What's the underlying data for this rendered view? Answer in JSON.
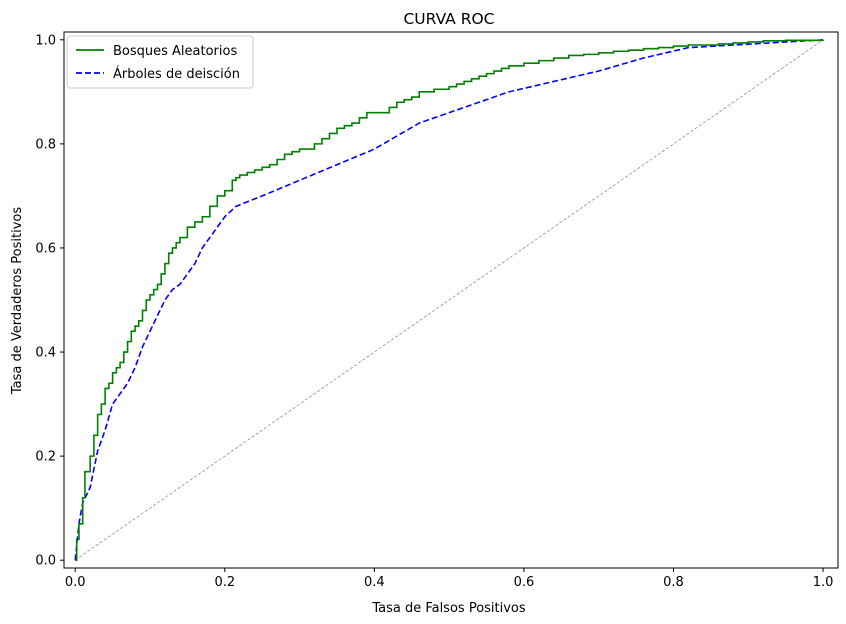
{
  "chart_data": {
    "type": "line",
    "title": "CURVA ROC",
    "xlabel": "Tasa de Falsos Positivos",
    "ylabel": "Tasa de Verdaderos Positivos",
    "xlim": [
      -0.015,
      1.02
    ],
    "ylim": [
      -0.015,
      1.015
    ],
    "xticks": [
      0.0,
      0.2,
      0.4,
      0.6,
      0.8,
      1.0
    ],
    "xtick_labels": [
      "0.0",
      "0.2",
      "0.4",
      "0.6",
      "0.8",
      "1.0"
    ],
    "yticks": [
      0.0,
      0.2,
      0.4,
      0.6,
      0.8,
      1.0
    ],
    "ytick_labels": [
      "0.0",
      "0.2",
      "0.4",
      "0.6",
      "0.8",
      "1.0"
    ],
    "grid": false,
    "legend_position": "top-left",
    "series": [
      {
        "name": "Bosques Aleatorios",
        "style": "solid",
        "color": "#008000",
        "x": [
          0.0,
          0.002,
          0.005,
          0.01,
          0.013,
          0.02,
          0.025,
          0.03,
          0.035,
          0.04,
          0.045,
          0.05,
          0.055,
          0.06,
          0.065,
          0.07,
          0.075,
          0.08,
          0.085,
          0.09,
          0.095,
          0.1,
          0.105,
          0.11,
          0.115,
          0.12,
          0.125,
          0.13,
          0.135,
          0.14,
          0.15,
          0.16,
          0.17,
          0.18,
          0.19,
          0.2,
          0.21,
          0.215,
          0.22,
          0.23,
          0.24,
          0.25,
          0.26,
          0.27,
          0.28,
          0.29,
          0.3,
          0.32,
          0.33,
          0.34,
          0.35,
          0.36,
          0.37,
          0.38,
          0.39,
          0.4,
          0.42,
          0.43,
          0.44,
          0.45,
          0.46,
          0.48,
          0.5,
          0.51,
          0.52,
          0.53,
          0.54,
          0.55,
          0.56,
          0.57,
          0.58,
          0.6,
          0.62,
          0.64,
          0.66,
          0.68,
          0.7,
          0.72,
          0.74,
          0.76,
          0.78,
          0.8,
          0.82,
          0.84,
          0.86,
          0.88,
          0.9,
          0.92,
          0.95,
          1.0
        ],
        "y": [
          0.0,
          0.04,
          0.07,
          0.12,
          0.17,
          0.2,
          0.24,
          0.28,
          0.3,
          0.33,
          0.34,
          0.36,
          0.37,
          0.38,
          0.4,
          0.42,
          0.44,
          0.45,
          0.46,
          0.48,
          0.5,
          0.51,
          0.52,
          0.53,
          0.55,
          0.57,
          0.59,
          0.6,
          0.61,
          0.62,
          0.64,
          0.65,
          0.66,
          0.68,
          0.7,
          0.71,
          0.73,
          0.735,
          0.74,
          0.745,
          0.75,
          0.755,
          0.76,
          0.77,
          0.78,
          0.785,
          0.79,
          0.8,
          0.81,
          0.82,
          0.83,
          0.835,
          0.84,
          0.85,
          0.86,
          0.86,
          0.87,
          0.88,
          0.885,
          0.89,
          0.9,
          0.905,
          0.91,
          0.915,
          0.92,
          0.925,
          0.93,
          0.935,
          0.94,
          0.945,
          0.95,
          0.955,
          0.96,
          0.965,
          0.97,
          0.972,
          0.975,
          0.978,
          0.98,
          0.983,
          0.985,
          0.988,
          0.99,
          0.99,
          0.992,
          0.994,
          0.996,
          0.998,
          0.999,
          1.0
        ]
      },
      {
        "name": "Árboles de deisción",
        "style": "dashed",
        "color": "#0000ff",
        "x": [
          0.0,
          0.005,
          0.01,
          0.02,
          0.03,
          0.04,
          0.05,
          0.06,
          0.07,
          0.08,
          0.09,
          0.1,
          0.11,
          0.12,
          0.13,
          0.14,
          0.15,
          0.16,
          0.17,
          0.18,
          0.19,
          0.2,
          0.215,
          0.25,
          0.3,
          0.35,
          0.4,
          0.46,
          0.52,
          0.58,
          0.64,
          0.7,
          0.76,
          0.82,
          0.88,
          0.94,
          1.0
        ],
        "y": [
          0.0,
          0.07,
          0.11,
          0.14,
          0.21,
          0.25,
          0.3,
          0.32,
          0.34,
          0.37,
          0.41,
          0.44,
          0.47,
          0.5,
          0.52,
          0.53,
          0.55,
          0.57,
          0.6,
          0.62,
          0.64,
          0.66,
          0.68,
          0.7,
          0.73,
          0.76,
          0.79,
          0.84,
          0.87,
          0.9,
          0.92,
          0.94,
          0.965,
          0.985,
          0.99,
          0.995,
          1.0
        ]
      },
      {
        "name": "",
        "style": "dashed-thin",
        "color": "#808080",
        "x": [
          0.0,
          1.0
        ],
        "y": [
          0.0,
          1.0
        ]
      }
    ]
  }
}
